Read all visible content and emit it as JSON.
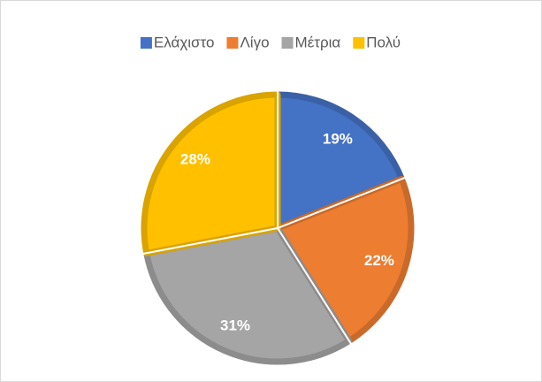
{
  "chart_data": {
    "type": "pie",
    "categories": [
      "Ελάχιστο",
      "Λίγο",
      "Μέτρια",
      "Πολύ"
    ],
    "values": [
      19,
      22,
      31,
      28
    ],
    "value_labels": [
      "19%",
      "22%",
      "31%",
      "28%"
    ],
    "colors": [
      "#4472c4",
      "#ed7d31",
      "#a5a5a5",
      "#ffc000"
    ],
    "legend": "top"
  }
}
